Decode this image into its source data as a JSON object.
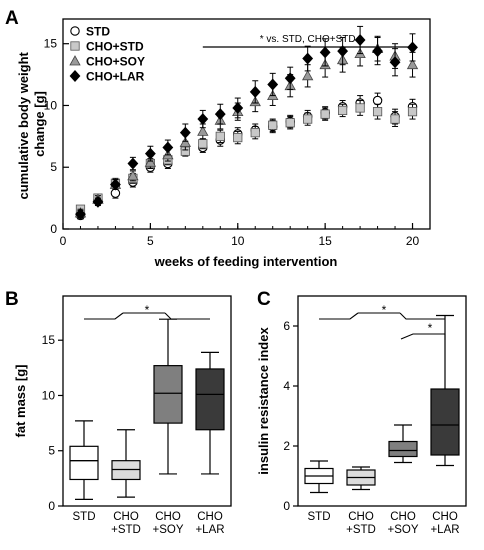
{
  "chart_data": [
    {
      "panel": "A",
      "type": "scatter",
      "xlabel": "weeks of feeding intervention",
      "ylabel": "cumulative body weight change [g]",
      "xlim": [
        0,
        21
      ],
      "ylim": [
        0,
        17
      ],
      "xticks": [
        0,
        5,
        10,
        15,
        20
      ],
      "yticks": [
        0,
        5,
        10,
        15
      ],
      "legend_position": "top-left",
      "annotation": "* vs. STD, CHO+STD",
      "annotation_range": [
        8,
        20
      ],
      "series": [
        {
          "name": "STD",
          "marker": "circle-open",
          "color": "#ffffff",
          "x": [
            1,
            2,
            3,
            4,
            5,
            6,
            7,
            8,
            9,
            10,
            11,
            12,
            13,
            14,
            15,
            16,
            17,
            18,
            19,
            20
          ],
          "y": [
            1.1,
            2.3,
            2.9,
            3.8,
            5.0,
            5.3,
            6.5,
            6.6,
            7.2,
            7.7,
            8.0,
            8.3,
            8.7,
            9.1,
            9.4,
            9.9,
            10.2,
            10.4,
            9.1,
            9.9
          ],
          "err": [
            0.3,
            0.3,
            0.4,
            0.4,
            0.4,
            0.4,
            0.4,
            0.4,
            0.5,
            0.5,
            0.5,
            0.5,
            0.5,
            0.5,
            0.5,
            0.5,
            0.6,
            0.6,
            0.6,
            0.6
          ]
        },
        {
          "name": "CHO+STD",
          "marker": "square",
          "color": "#c8c8c8",
          "x": [
            1,
            2,
            3,
            4,
            5,
            6,
            7,
            8,
            9,
            10,
            11,
            12,
            13,
            14,
            15,
            16,
            17,
            18,
            19,
            20
          ],
          "y": [
            1.6,
            2.5,
            3.7,
            4.1,
            5.3,
            5.6,
            6.3,
            6.9,
            7.5,
            7.4,
            7.8,
            8.4,
            8.6,
            8.9,
            9.3,
            9.6,
            9.8,
            9.5,
            8.9,
            9.5
          ],
          "err": [
            0.3,
            0.3,
            0.4,
            0.4,
            0.4,
            0.4,
            0.4,
            0.4,
            0.5,
            0.5,
            0.5,
            0.5,
            0.5,
            0.5,
            0.5,
            0.5,
            0.6,
            0.6,
            0.6,
            0.6
          ]
        },
        {
          "name": "CHO+SOY",
          "marker": "triangle",
          "color": "#9a9a9a",
          "x": [
            1,
            2,
            3,
            4,
            5,
            6,
            7,
            8,
            9,
            10,
            11,
            12,
            13,
            14,
            15,
            16,
            17,
            18,
            19,
            20
          ],
          "y": [
            1.3,
            2.4,
            3.6,
            4.3,
            5.4,
            6.0,
            7.0,
            7.9,
            8.8,
            9.5,
            10.3,
            10.8,
            11.6,
            12.4,
            13.3,
            13.7,
            14.2,
            14.6,
            14.0,
            13.3
          ],
          "err": [
            0.3,
            0.3,
            0.4,
            0.4,
            0.5,
            0.5,
            0.6,
            0.6,
            0.7,
            0.7,
            0.8,
            0.8,
            0.9,
            0.9,
            1.0,
            1.0,
            1.0,
            1.0,
            1.0,
            1.0
          ]
        },
        {
          "name": "CHO+LAR",
          "marker": "diamond",
          "color": "#000000",
          "x": [
            1,
            2,
            3,
            4,
            5,
            6,
            7,
            8,
            9,
            10,
            11,
            12,
            13,
            14,
            15,
            16,
            17,
            18,
            19,
            20
          ],
          "y": [
            1.2,
            2.2,
            3.6,
            5.3,
            6.1,
            6.6,
            7.8,
            8.9,
            9.3,
            9.8,
            11.1,
            11.7,
            12.2,
            13.8,
            14.3,
            14.4,
            15.3,
            14.4,
            13.5,
            14.7
          ],
          "err": [
            0.3,
            0.3,
            0.4,
            0.5,
            0.6,
            0.6,
            0.7,
            0.7,
            0.8,
            0.8,
            0.9,
            0.9,
            0.9,
            1.0,
            1.1,
            1.1,
            1.1,
            1.1,
            1.1,
            1.1
          ]
        }
      ]
    },
    {
      "panel": "B",
      "type": "box",
      "ylabel": "fat mass [g]",
      "ylim": [
        0,
        19
      ],
      "yticks": [
        0,
        5,
        10,
        15
      ],
      "significance": "*",
      "categories": [
        {
          "line1": "STD",
          "line2": ""
        },
        {
          "line1": "CHO",
          "line2": "+STD"
        },
        {
          "line1": "CHO",
          "line2": "+SOY"
        },
        {
          "line1": "CHO",
          "line2": "+LAR"
        }
      ],
      "boxes": [
        {
          "min": 0.6,
          "q1": 2.4,
          "median": 4.1,
          "q3": 5.4,
          "max": 7.7,
          "fill": "#ffffff"
        },
        {
          "min": 0.8,
          "q1": 2.4,
          "median": 3.3,
          "q3": 4.1,
          "max": 6.9,
          "fill": "#dcdcdc"
        },
        {
          "min": 2.9,
          "q1": 7.5,
          "median": 10.2,
          "q3": 12.7,
          "max": 16.9,
          "fill": "#7f7f7f"
        },
        {
          "min": 2.9,
          "q1": 6.9,
          "median": 10.1,
          "q3": 12.4,
          "max": 13.9,
          "fill": "#3a3a3a"
        }
      ]
    },
    {
      "panel": "C",
      "type": "box",
      "ylabel": "insulin resistance index",
      "ylim": [
        0,
        7
      ],
      "yticks": [
        0,
        2,
        4,
        6
      ],
      "significance": [
        "*",
        "*"
      ],
      "categories": [
        {
          "line1": "STD",
          "line2": ""
        },
        {
          "line1": "CHO",
          "line2": "+STD"
        },
        {
          "line1": "CHO",
          "line2": "+SOY"
        },
        {
          "line1": "CHO",
          "line2": "+LAR"
        }
      ],
      "boxes": [
        {
          "min": 0.45,
          "q1": 0.75,
          "median": 1.0,
          "q3": 1.25,
          "max": 1.5,
          "fill": "#ffffff"
        },
        {
          "min": 0.55,
          "q1": 0.7,
          "median": 0.95,
          "q3": 1.2,
          "max": 1.3,
          "fill": "#dcdcdc"
        },
        {
          "min": 1.45,
          "q1": 1.65,
          "median": 1.85,
          "q3": 2.15,
          "max": 2.7,
          "fill": "#7f7f7f"
        },
        {
          "min": 1.35,
          "q1": 1.7,
          "median": 2.7,
          "q3": 3.9,
          "max": 6.35,
          "fill": "#3a3a3a"
        }
      ]
    }
  ],
  "panel_labels": [
    "A",
    "B",
    "C"
  ]
}
